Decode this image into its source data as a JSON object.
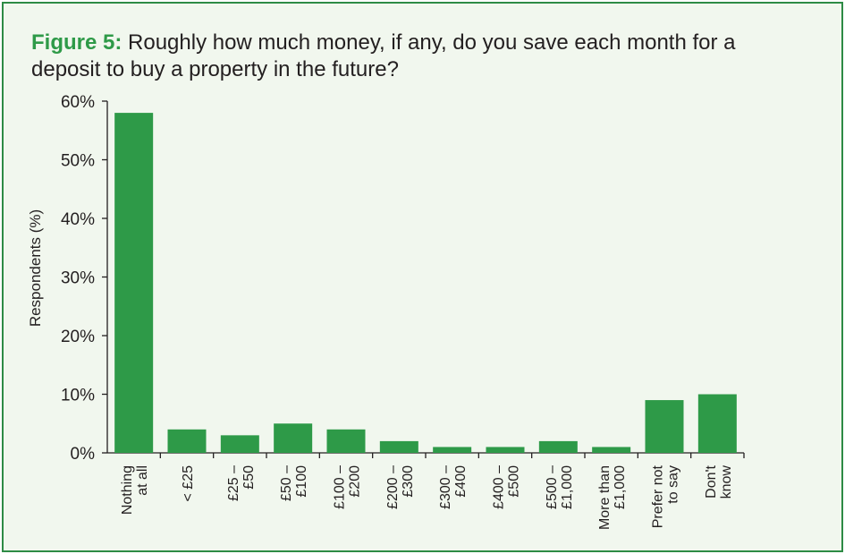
{
  "figure": {
    "label": "Figure 5:",
    "question": "Roughly how much money, if any, do you save each month for a deposit to buy a property in the future?"
  },
  "colors": {
    "bar": "#2e9a48",
    "border": "#2e8b45",
    "background": "#f1f7ee",
    "text": "#231f20"
  },
  "chart_data": {
    "type": "bar",
    "title": "",
    "xlabel": "",
    "ylabel": "Respondents (%)",
    "ylim": [
      0,
      60
    ],
    "yticks": [
      0,
      10,
      20,
      30,
      40,
      50,
      60
    ],
    "ytick_labels": [
      "0%",
      "10%",
      "20%",
      "30%",
      "40%",
      "50%",
      "60%"
    ],
    "grid": false,
    "legend": "none",
    "categories": [
      [
        "Nothing",
        "at all"
      ],
      [
        "< £25"
      ],
      [
        "£25 –",
        "£50"
      ],
      [
        "£50 –",
        "£100"
      ],
      [
        "£100 –",
        "£200"
      ],
      [
        "£200 –",
        "£300"
      ],
      [
        "£300 –",
        "£400"
      ],
      [
        "£400 –",
        "£500"
      ],
      [
        "£500 –",
        "£1,000"
      ],
      [
        "More than",
        "£1,000"
      ],
      [
        "Prefer not",
        "to say"
      ],
      [
        "Don't",
        "know"
      ]
    ],
    "values": [
      58,
      4,
      3,
      5,
      4,
      2,
      1,
      1,
      2,
      1,
      9,
      10
    ]
  }
}
